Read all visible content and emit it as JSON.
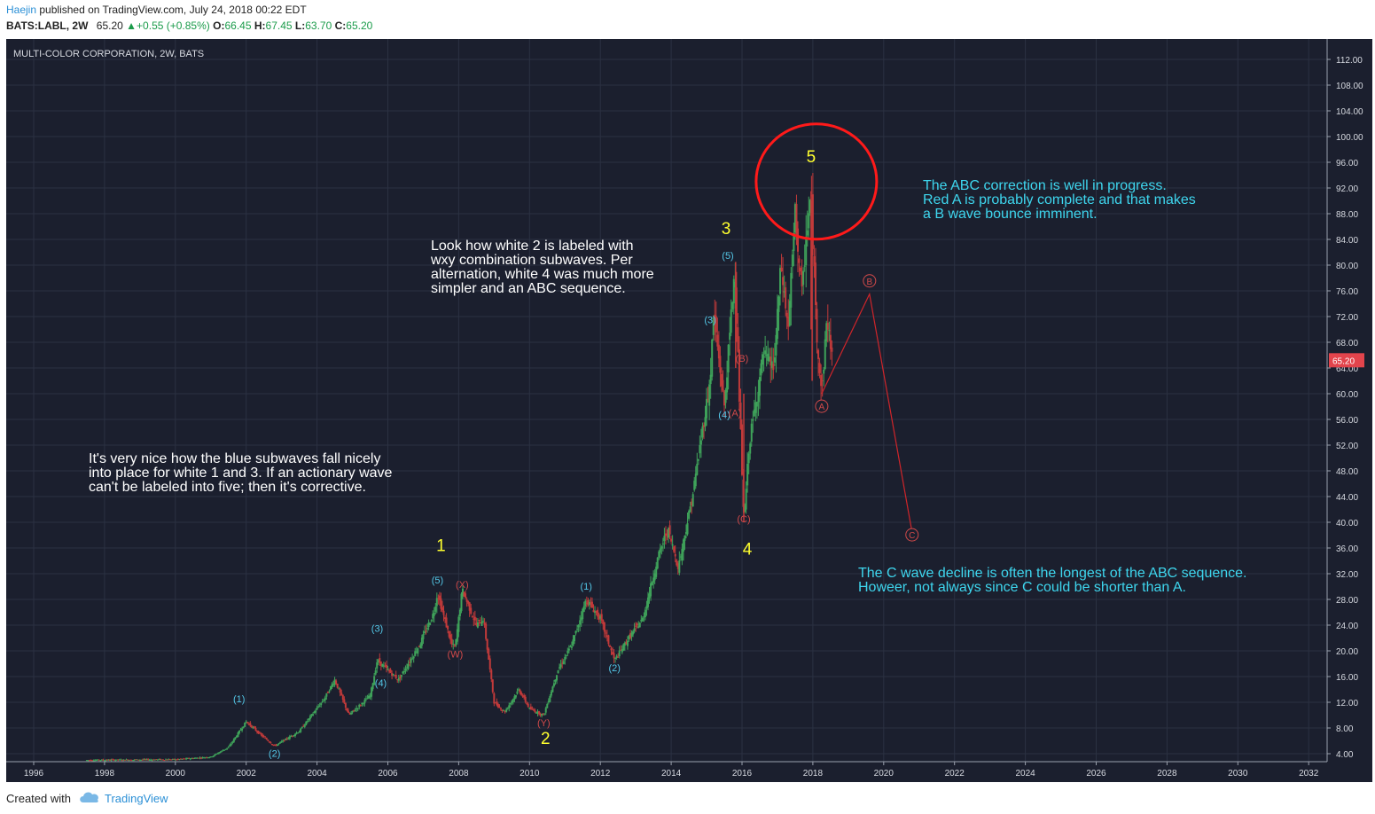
{
  "header": {
    "author": "Haejin",
    "published": "published on TradingView.com, July 24, 2018 00:22 EDT",
    "symbol": "BATS:LABL, 2W",
    "last": "65.20",
    "change": "+0.55 (+0.85%)",
    "o_label": "O:",
    "o_value": "66.45",
    "h_label": "H:",
    "h_value": "67.45",
    "l_label": "L:",
    "l_value": "63.70",
    "c_label": "C:",
    "c_value": "65.20"
  },
  "footer": {
    "created_with": "Created with",
    "brand": "TradingView"
  },
  "colors": {
    "background": "#1b1f2e",
    "grid": "#2b3142",
    "up_candle": "#3fa35a",
    "down_candle": "#c23a3a",
    "white_label": "#ffff2e",
    "blue_label": "#54c8e8",
    "red_label": "#d24a4a",
    "annotation_cyan": "#3ed6ee",
    "annotation_white": "#ffffff",
    "price_tag": "#e2444c"
  },
  "chart_data": {
    "type": "candlestick",
    "title": "MULTI-COLOR CORPORATION, 2W, BATS",
    "xlabel": "",
    "ylabel": "",
    "xlim": [
      1995.3,
      2033.3
    ],
    "ylim": [
      2.0,
      114.0
    ],
    "x_ticks": [
      "1996",
      "1998",
      "2000",
      "2002",
      "2004",
      "2006",
      "2008",
      "2010",
      "2012",
      "2014",
      "2016",
      "2018",
      "2020",
      "2022",
      "2024",
      "2026",
      "2028",
      "2030",
      "2032"
    ],
    "y_ticks": [
      "4.00",
      "8.00",
      "12.00",
      "16.00",
      "20.00",
      "24.00",
      "28.00",
      "32.00",
      "36.00",
      "40.00",
      "44.00",
      "48.00",
      "52.00",
      "56.00",
      "60.00",
      "64.00",
      "68.00",
      "72.00",
      "76.00",
      "80.00",
      "84.00",
      "88.00",
      "92.00",
      "96.00",
      "100.00",
      "104.00",
      "108.00",
      "112.00"
    ],
    "last_price": "65.20",
    "price_path": [
      [
        1997.5,
        3.0
      ],
      [
        2000.0,
        3.1
      ],
      [
        2001.0,
        3.5
      ],
      [
        2001.5,
        5.0
      ],
      [
        2002.0,
        9.0
      ],
      [
        2002.4,
        7.0
      ],
      [
        2002.8,
        5.2
      ],
      [
        2003.5,
        7.5
      ],
      [
        2004.2,
        12.5
      ],
      [
        2004.5,
        15.5
      ],
      [
        2004.9,
        10.0
      ],
      [
        2005.5,
        13.0
      ],
      [
        2005.7,
        18.5
      ],
      [
        2006.3,
        15.5
      ],
      [
        2006.9,
        21.0
      ],
      [
        2007.3,
        26.0
      ],
      [
        2007.4,
        29.0
      ],
      [
        2007.8,
        21.0
      ],
      [
        2007.9,
        20.5
      ],
      [
        2008.1,
        29.5
      ],
      [
        2008.5,
        24.0
      ],
      [
        2008.7,
        25.0
      ],
      [
        2009.0,
        12.0
      ],
      [
        2009.3,
        10.5
      ],
      [
        2009.7,
        14.0
      ],
      [
        2010.0,
        11.0
      ],
      [
        2010.4,
        10.0
      ],
      [
        2010.8,
        17.0
      ],
      [
        2011.2,
        21.0
      ],
      [
        2011.6,
        28.0
      ],
      [
        2012.0,
        25.0
      ],
      [
        2012.4,
        18.5
      ],
      [
        2012.8,
        22.0
      ],
      [
        2013.2,
        25.0
      ],
      [
        2013.6,
        34.0
      ],
      [
        2013.9,
        39.0
      ],
      [
        2014.2,
        33.0
      ],
      [
        2014.6,
        44.0
      ],
      [
        2014.9,
        55.0
      ],
      [
        2015.1,
        62.0
      ],
      [
        2015.2,
        72.5
      ],
      [
        2015.5,
        58.0
      ],
      [
        2015.8,
        80.0
      ],
      [
        2015.9,
        63.0
      ],
      [
        2016.05,
        40.0
      ],
      [
        2016.2,
        52.0
      ],
      [
        2016.6,
        66.0
      ],
      [
        2016.9,
        64.0
      ],
      [
        2017.1,
        80.0
      ],
      [
        2017.3,
        70.0
      ],
      [
        2017.5,
        88.0
      ],
      [
        2017.7,
        75.0
      ],
      [
        2017.8,
        84.0
      ],
      [
        2017.95,
        91.0
      ],
      [
        2018.1,
        70.0
      ],
      [
        2018.25,
        60.0
      ],
      [
        2018.4,
        72.0
      ],
      [
        2018.55,
        65.2
      ]
    ],
    "projection": [
      [
        2018.25,
        60.0
      ],
      [
        2019.6,
        75.5
      ],
      [
        2020.8,
        38.5
      ]
    ],
    "wave_labels_white": [
      {
        "text": "1",
        "x": 2007.5,
        "y": 35.5
      },
      {
        "text": "2",
        "x": 2010.45,
        "y": 5.5
      },
      {
        "text": "3",
        "x": 2015.55,
        "y": 84.8
      },
      {
        "text": "4",
        "x": 2016.15,
        "y": 35.0
      },
      {
        "text": "5",
        "x": 2017.95,
        "y": 96.0
      }
    ],
    "wave_labels_blue": [
      {
        "text": "(1)",
        "x": 2001.8,
        "y": 12.0
      },
      {
        "text": "(2)",
        "x": 2002.8,
        "y": 3.5
      },
      {
        "text": "(3)",
        "x": 2005.7,
        "y": 23.0
      },
      {
        "text": "(4)",
        "x": 2005.8,
        "y": 14.5
      },
      {
        "text": "(5)",
        "x": 2007.4,
        "y": 30.5
      },
      {
        "text": "(1)",
        "x": 2011.6,
        "y": 29.5
      },
      {
        "text": "(2)",
        "x": 2012.4,
        "y": 16.8
      },
      {
        "text": "(3)",
        "x": 2015.1,
        "y": 71.0
      },
      {
        "text": "(4)",
        "x": 2015.5,
        "y": 56.2
      },
      {
        "text": "(5)",
        "x": 2015.6,
        "y": 81.0
      }
    ],
    "wave_labels_red": [
      {
        "text": "(X)",
        "x": 2008.1,
        "y": 29.8
      },
      {
        "text": "(W)",
        "x": 2007.9,
        "y": 19.0
      },
      {
        "text": "(Y)",
        "x": 2010.4,
        "y": 8.3
      },
      {
        "text": "(A)",
        "x": 2015.8,
        "y": 56.5
      },
      {
        "text": "(B)",
        "x": 2016.0,
        "y": 65.0
      },
      {
        "text": "(C)",
        "x": 2016.05,
        "y": 40.0
      }
    ],
    "wave_labels_red_circled": [
      {
        "text": "A",
        "x": 2018.25,
        "y": 57.5
      },
      {
        "text": "B",
        "x": 2019.6,
        "y": 77.0
      },
      {
        "text": "C",
        "x": 2020.8,
        "y": 37.5
      }
    ],
    "highlight_circle": {
      "x": 2018.1,
      "y": 93.0,
      "label": "wave 5 top"
    },
    "annotations": {
      "note_white_2": [
        "Look how white 2 is labeled with",
        "wxy combination subwaves. Per",
        "alternation, white 4 was much more",
        "simpler and an ABC sequence."
      ],
      "note_blue_subwaves": [
        "It's very nice how the blue subwaves fall nicely",
        "into place for white 1 and 3. If an actionary wave",
        "can't be labeled into five; then it's corrective."
      ],
      "note_abc": [
        "The ABC correction is well in progress.",
        "Red A is probably complete and that makes",
        "a B wave bounce imminent."
      ],
      "note_c_wave": [
        "The C wave decline is often the longest of the ABC sequence.",
        "Howeer, not always since C could be shorter than A."
      ]
    }
  }
}
